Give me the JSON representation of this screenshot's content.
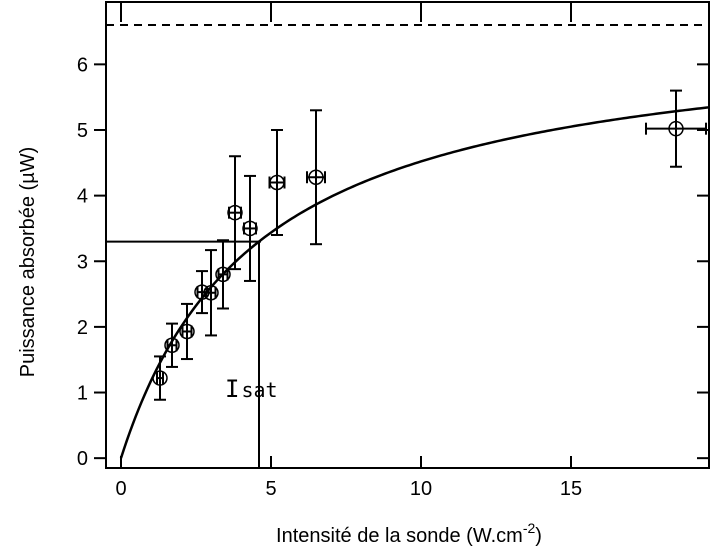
{
  "chart_data": {
    "type": "scatter",
    "title": "",
    "xlabel": "Intensité de la sonde (W.cm",
    "xlabel_sup": "-2",
    "xlabel_close": ")",
    "ylabel": "Puissance absorbée (µW)",
    "xlim": [
      -0.5,
      19.6
    ],
    "ylim": [
      -0.15,
      6.95
    ],
    "x_ticks": [
      0,
      5,
      10,
      15
    ],
    "y_ticks": [
      0,
      1,
      2,
      3,
      4,
      5,
      6
    ],
    "x_tick_labels": [
      "0",
      "5",
      "10",
      "15"
    ],
    "y_tick_labels": [
      "0",
      "1",
      "2",
      "3",
      "4",
      "5",
      "6"
    ],
    "grid": false,
    "saturation_level": 6.6,
    "half_saturation_level": 3.3,
    "i_sat": 4.6,
    "annotation": {
      "main": "I",
      "sub": "sat"
    },
    "fit_curve": {
      "model": "Pmax*x/(x+Isat)",
      "Pmax": 6.6,
      "Isat": 4.6
    },
    "points": [
      {
        "x": 1.3,
        "y": 1.22,
        "xerr": 0.1,
        "yerr": 0.33
      },
      {
        "x": 1.7,
        "y": 1.72,
        "xerr": 0.15,
        "yerr": 0.33
      },
      {
        "x": 2.2,
        "y": 1.93,
        "xerr": 0.15,
        "yerr": 0.42
      },
      {
        "x": 2.7,
        "y": 2.53,
        "xerr": 0.15,
        "yerr": 0.32
      },
      {
        "x": 3.0,
        "y": 2.52,
        "xerr": 0.15,
        "yerr": 0.65
      },
      {
        "x": 3.4,
        "y": 2.8,
        "xerr": 0.15,
        "yerr": 0.52
      },
      {
        "x": 3.8,
        "y": 3.74,
        "xerr": 0.2,
        "yerr": 0.86
      },
      {
        "x": 4.3,
        "y": 3.5,
        "xerr": 0.2,
        "yerr": 0.8
      },
      {
        "x": 5.2,
        "y": 4.2,
        "xerr": 0.25,
        "yerr": 0.8
      },
      {
        "x": 6.5,
        "y": 4.28,
        "xerr": 0.3,
        "yerr": 1.02
      },
      {
        "x": 18.5,
        "y": 5.02,
        "xerr": 1.0,
        "yerr": 0.58
      }
    ]
  }
}
